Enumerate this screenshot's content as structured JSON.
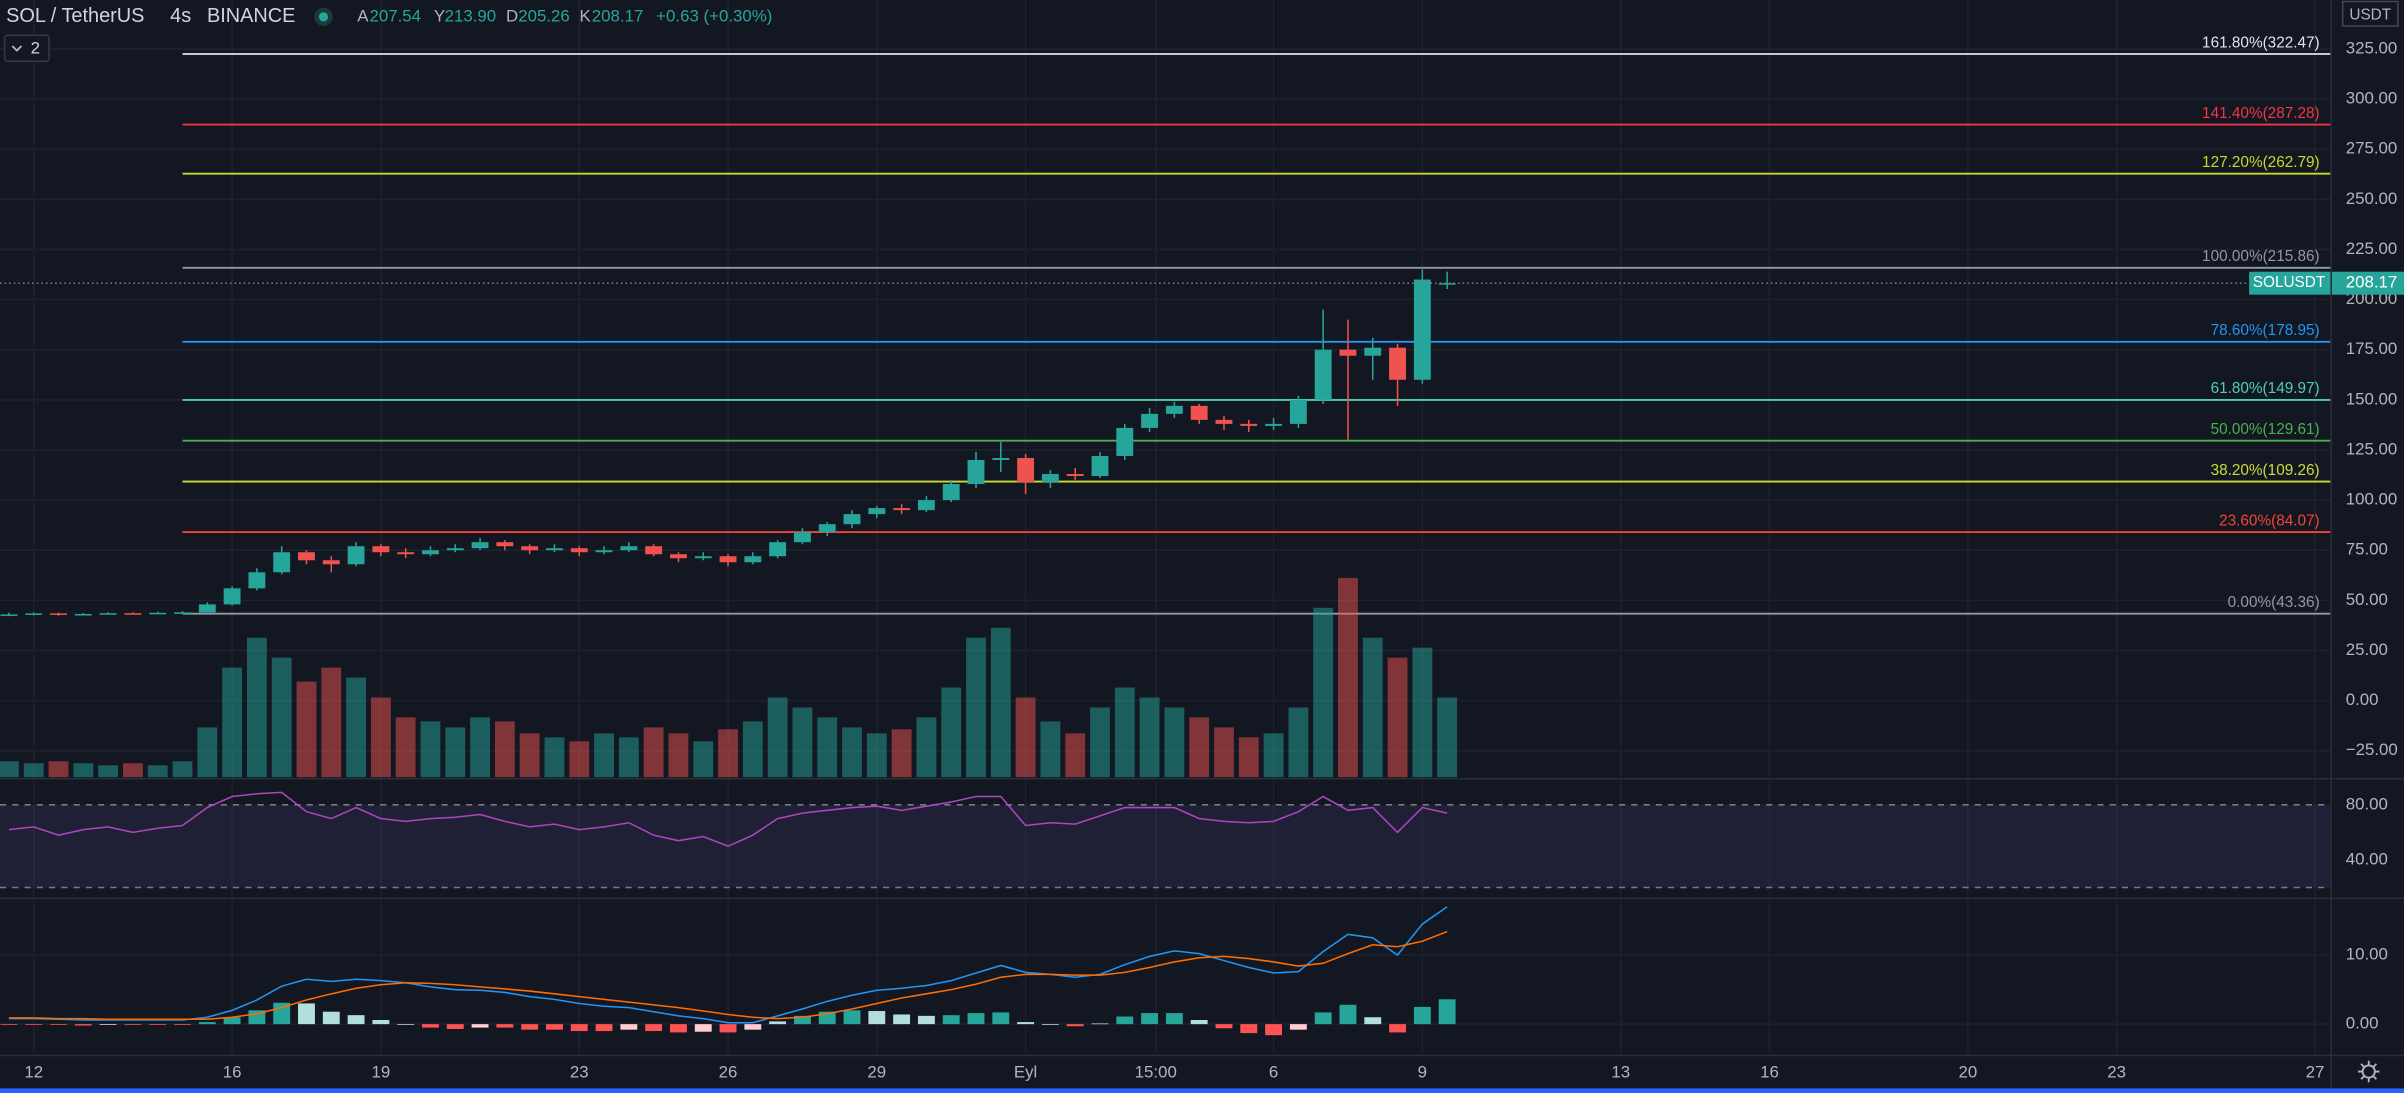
{
  "chart_data": {
    "type": "candlestick",
    "header": {
      "symbol": "SOL / TetherUS",
      "interval": "4s",
      "exchange": "BINANCE",
      "ohlc_letters": [
        "A",
        "Y",
        "D",
        "K"
      ],
      "ohlc_values": [
        "207.54",
        "213.90",
        "205.26",
        "208.17"
      ],
      "change": "+0.63 (+0.30%)",
      "indicator_count": 2
    },
    "currency": "USDT",
    "symbol_tag": "SOLUSDT",
    "last_price": 208.17,
    "up_color": "#26a69a",
    "down_color": "#ef5350",
    "grid": true,
    "xlim": [
      -0.68,
      46.31
    ],
    "xticks": [
      {
        "value": 0,
        "label": "12"
      },
      {
        "value": 4,
        "label": "16"
      },
      {
        "value": 7,
        "label": "19"
      },
      {
        "value": 11,
        "label": "23"
      },
      {
        "value": 14,
        "label": "26"
      },
      {
        "value": 17,
        "label": "29"
      },
      {
        "value": 20,
        "label": "Eyl"
      },
      {
        "value": 22.625,
        "label": "15:00"
      },
      {
        "value": 25,
        "label": "6"
      },
      {
        "value": 28,
        "label": "9"
      },
      {
        "value": 32,
        "label": "13"
      },
      {
        "value": 35,
        "label": "16"
      },
      {
        "value": 39,
        "label": "20"
      },
      {
        "value": 42,
        "label": "23"
      },
      {
        "value": 46,
        "label": "27"
      }
    ],
    "ylim": [
      -38.2,
      349.4
    ],
    "yticks": [
      {
        "value": 325,
        "label": "325.00"
      },
      {
        "value": 300,
        "label": "300.00"
      },
      {
        "value": 275,
        "label": "275.00"
      },
      {
        "value": 250,
        "label": "250.00"
      },
      {
        "value": 225,
        "label": "225.00"
      },
      {
        "value": 200,
        "label": "200.00"
      },
      {
        "value": 175,
        "label": "175.00"
      },
      {
        "value": 150,
        "label": "150.00"
      },
      {
        "value": 125,
        "label": "125.00"
      },
      {
        "value": 100,
        "label": "100.00"
      },
      {
        "value": 75,
        "label": "75.00"
      },
      {
        "value": 50,
        "label": "50.00"
      },
      {
        "value": 25,
        "label": "25.00"
      },
      {
        "value": 0,
        "label": "0.00"
      },
      {
        "value": -25,
        "label": "−25.00"
      }
    ],
    "x": [
      -0.5,
      0,
      0.5,
      1,
      1.5,
      2,
      2.5,
      3,
      3.5,
      4,
      4.5,
      5,
      5.5,
      6,
      6.5,
      7,
      7.5,
      8,
      8.5,
      9,
      9.5,
      10,
      10.5,
      11,
      11.5,
      12,
      12.5,
      13,
      13.5,
      14,
      14.5,
      15,
      15.5,
      16,
      16.5,
      17,
      17.5,
      18,
      18.5,
      19,
      19.5,
      20,
      20.5,
      21,
      21.5,
      22,
      22.5,
      23,
      23.5,
      24,
      24.5,
      25,
      25.5,
      26,
      26.5,
      27,
      27.5,
      28,
      28.5
    ],
    "open": [
      42.6,
      43,
      43.5,
      42.8,
      43.2,
      43.6,
      43.4,
      43.8,
      44,
      48,
      56,
      64,
      74,
      70,
      68,
      77,
      74,
      73,
      75,
      76,
      79,
      77,
      75,
      76,
      74,
      75,
      77,
      73,
      71,
      72,
      69,
      72,
      79,
      84,
      88,
      93,
      96,
      95,
      100,
      108,
      120,
      121,
      109,
      113,
      112,
      122,
      136,
      143,
      147,
      140,
      138,
      137,
      138,
      150,
      175,
      172,
      176,
      160,
      207.54
    ],
    "high": [
      43.8,
      44,
      43.9,
      43.7,
      44.1,
      44,
      44.3,
      44.6,
      49,
      57,
      66,
      77,
      75,
      72,
      79,
      78,
      76,
      77,
      78,
      81,
      80,
      78,
      78,
      77,
      77,
      79,
      78,
      74,
      74,
      73,
      74,
      80,
      86,
      89,
      95,
      97,
      98,
      102,
      110,
      124,
      129,
      123,
      115,
      116,
      124,
      138,
      146,
      149,
      148,
      142,
      140,
      141,
      152,
      195,
      190,
      181,
      178,
      215,
      213.9
    ],
    "low": [
      42.1,
      42.5,
      42.3,
      42.5,
      42.9,
      43,
      43.1,
      43.3,
      43.8,
      47.5,
      55,
      63,
      68,
      64,
      67,
      72,
      71,
      72,
      74,
      75,
      75,
      73,
      74,
      72,
      73,
      74,
      72,
      69,
      70,
      67,
      68,
      71,
      78,
      82,
      86,
      91,
      93,
      94,
      99,
      106,
      114,
      103,
      106,
      110,
      111,
      120,
      134,
      141,
      138,
      135,
      134,
      135,
      136,
      148,
      130,
      160,
      147,
      158,
      205.26
    ],
    "close": [
      43,
      43.5,
      42.8,
      43.2,
      43.6,
      43.4,
      43.8,
      44,
      48,
      56,
      64,
      74,
      70,
      68,
      77,
      74,
      73,
      75,
      76,
      79,
      77,
      75,
      76,
      74,
      75,
      77,
      73,
      71,
      72,
      69,
      72,
      79,
      84,
      88,
      93,
      96,
      95,
      100,
      108,
      120,
      121,
      109,
      113,
      112,
      122,
      136,
      143,
      147,
      140,
      138,
      137,
      138,
      150,
      175,
      172,
      176,
      160,
      210,
      208.17
    ],
    "volume": [
      8,
      7,
      8,
      7,
      6,
      7,
      6,
      8,
      25,
      55,
      70,
      60,
      48,
      55,
      50,
      40,
      30,
      28,
      25,
      30,
      28,
      22,
      20,
      18,
      22,
      20,
      25,
      22,
      18,
      24,
      28,
      40,
      35,
      30,
      25,
      22,
      24,
      30,
      45,
      70,
      75,
      40,
      28,
      22,
      35,
      45,
      40,
      35,
      30,
      25,
      20,
      22,
      35,
      85,
      100,
      70,
      60,
      65,
      40
    ],
    "fib": {
      "anchor_x": 3,
      "levels": [
        {
          "label": "161.80%(322.47)",
          "value": 322.47,
          "color": "#e0e3eb"
        },
        {
          "label": "141.40%(287.28)",
          "value": 287.28,
          "color": "#f23645"
        },
        {
          "label": "127.20%(262.79)",
          "value": 262.79,
          "color": "#c6d82c"
        },
        {
          "label": "100.00%(215.86)",
          "value": 215.86,
          "color": "#9598a1"
        },
        {
          "label": "78.60%(178.95)",
          "value": 178.95,
          "color": "#2196f3"
        },
        {
          "label": "61.80%(149.97)",
          "value": 149.97,
          "color": "#4dd0b1"
        },
        {
          "label": "50.00%(129.61)",
          "value": 129.61,
          "color": "#4caf50"
        },
        {
          "label": "38.20%(109.26)",
          "value": 109.26,
          "color": "#cddc39"
        },
        {
          "label": "23.60%(84.07)",
          "value": 84.07,
          "color": "#f44336"
        },
        {
          "label": "0.00%(43.36)",
          "value": 43.36,
          "color": "#9598a1"
        }
      ]
    },
    "rsi": {
      "color": "#ab47bc",
      "ylim": [
        13.3,
        97.8
      ],
      "bands": [
        20,
        80
      ],
      "yticks": [
        {
          "value": 80,
          "label": "80.00"
        },
        {
          "value": 40,
          "label": "40.00"
        }
      ],
      "values": [
        62,
        64,
        58,
        62,
        64,
        60,
        63,
        65,
        78,
        86,
        88,
        89,
        75,
        70,
        78,
        70,
        68,
        70,
        71,
        73,
        68,
        64,
        66,
        62,
        64,
        67,
        58,
        54,
        57,
        50,
        58,
        70,
        74,
        76,
        78,
        79,
        76,
        79,
        82,
        86,
        86,
        65,
        67,
        66,
        72,
        78,
        78,
        78,
        70,
        68,
        67,
        68,
        75,
        86,
        76,
        78,
        60,
        78,
        74
      ]
    },
    "macd": {
      "ylim": [
        -4.2,
        18
      ],
      "macd_color": "#2196f3",
      "signal_color": "#ff6d00",
      "yticks": [
        {
          "value": 10,
          "label": "10.00"
        },
        {
          "value": 0,
          "label": "0.00"
        }
      ],
      "macd": [
        0.8,
        0.8,
        0.7,
        0.6,
        0.6,
        0.6,
        0.6,
        0.6,
        1.0,
        2.0,
        3.5,
        5.5,
        6.5,
        6.2,
        6.5,
        6.3,
        6.0,
        5.4,
        5.0,
        4.9,
        4.6,
        4.0,
        3.6,
        3.0,
        2.6,
        2.4,
        1.8,
        1.2,
        0.8,
        0.2,
        0.2,
        1.2,
        2.2,
        3.3,
        4.2,
        4.9,
        5.2,
        5.6,
        6.3,
        7.4,
        8.5,
        7.5,
        7.2,
        6.8,
        7.2,
        8.6,
        9.8,
        10.6,
        10.2,
        9.2,
        8.2,
        7.4,
        7.6,
        10.5,
        13.0,
        12.5,
        10.0,
        14.5,
        17.0
      ],
      "signal": [
        0.9,
        0.9,
        0.8,
        0.8,
        0.7,
        0.7,
        0.7,
        0.7,
        0.7,
        1.0,
        1.5,
        2.4,
        3.5,
        4.4,
        5.2,
        5.7,
        6.0,
        5.9,
        5.7,
        5.4,
        5.1,
        4.8,
        4.4,
        4.0,
        3.6,
        3.2,
        2.8,
        2.4,
        1.9,
        1.4,
        1.0,
        0.8,
        1.0,
        1.5,
        2.2,
        3.0,
        3.8,
        4.4,
        5.0,
        5.8,
        6.8,
        7.2,
        7.2,
        7.1,
        7.1,
        7.5,
        8.2,
        9.0,
        9.6,
        9.8,
        9.5,
        9.0,
        8.4,
        8.8,
        10.2,
        11.5,
        11.2,
        12.0,
        13.4
      ],
      "histogram": [
        -0.1,
        -0.1,
        -0.1,
        -0.2,
        -0.1,
        -0.1,
        -0.1,
        -0.1,
        0.3,
        1.0,
        2.0,
        3.1,
        3.0,
        1.8,
        1.3,
        0.6,
        0,
        -0.5,
        -0.7,
        -0.5,
        -0.5,
        -0.8,
        -0.8,
        -1.0,
        -1.0,
        -0.8,
        -1.0,
        -1.2,
        -1.1,
        -1.2,
        -0.8,
        0.4,
        1.2,
        1.8,
        2.0,
        1.9,
        1.4,
        1.2,
        1.3,
        1.6,
        1.7,
        0.3,
        0,
        -0.3,
        0.1,
        1.1,
        1.6,
        1.6,
        0.6,
        -0.6,
        -1.3,
        -1.6,
        -0.8,
        1.7,
        2.8,
        1.0,
        -1.2,
        2.5,
        3.6
      ]
    }
  }
}
